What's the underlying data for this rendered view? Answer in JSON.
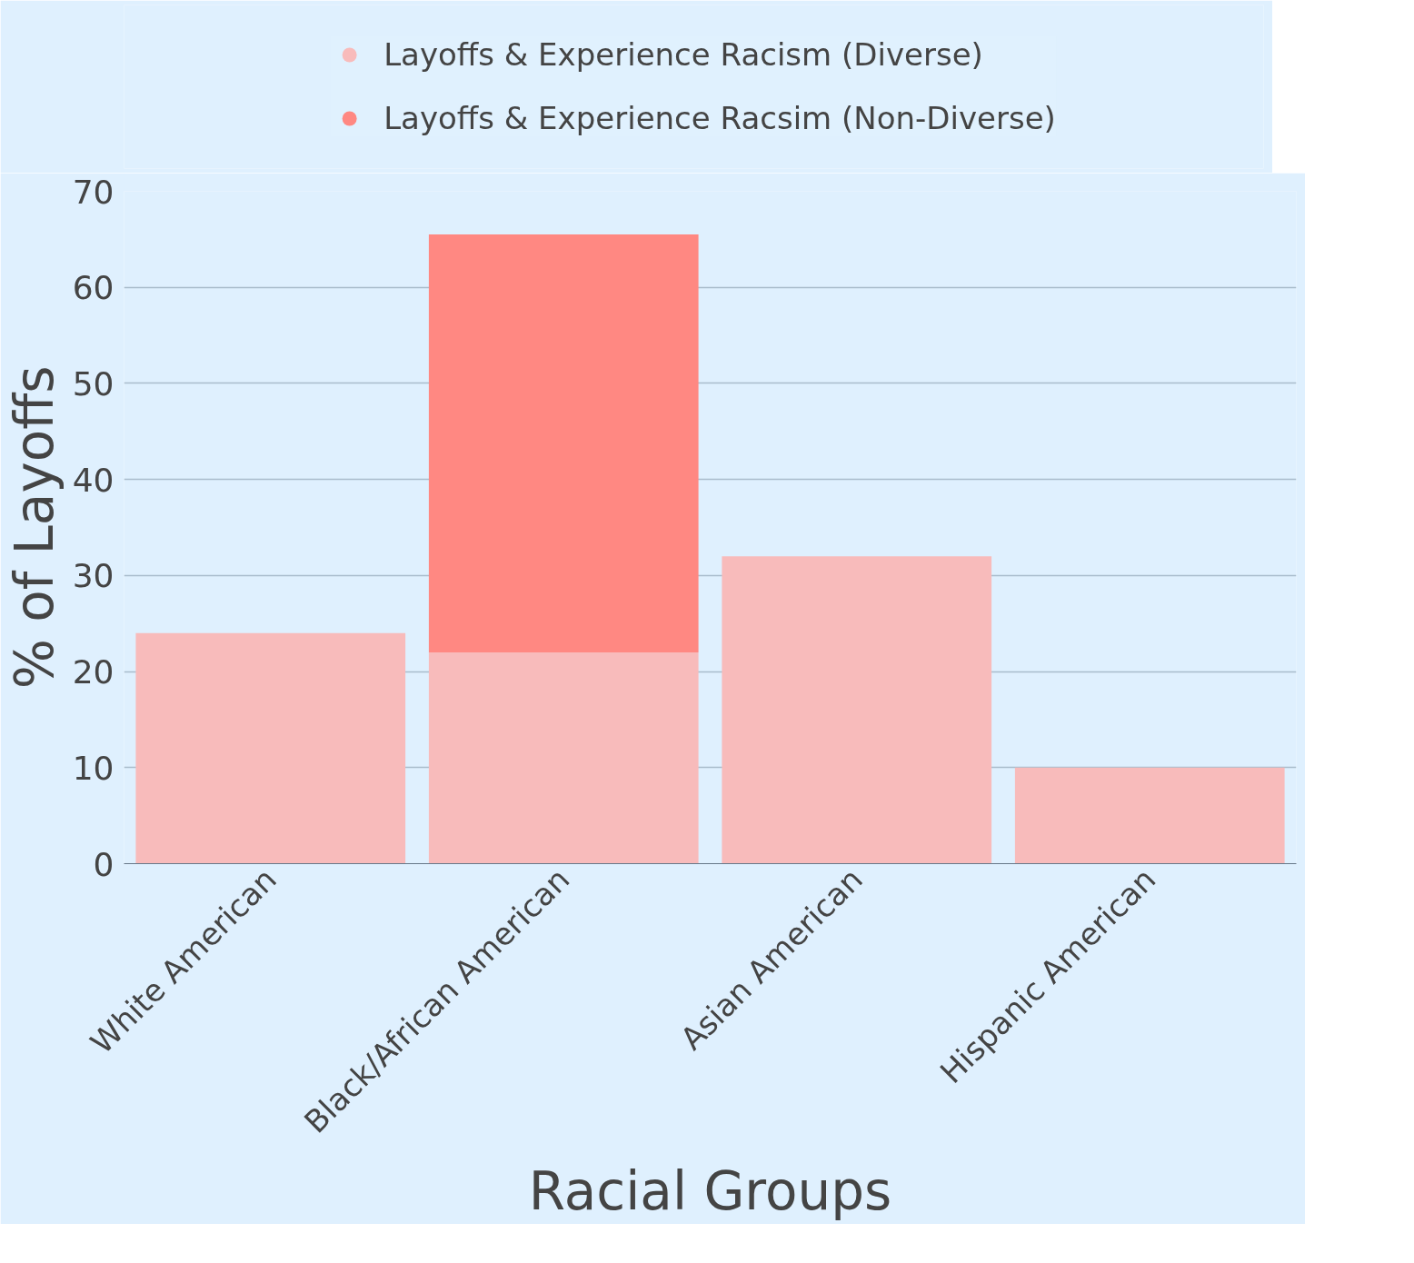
{
  "chart_data": {
    "type": "bar",
    "stacked": true,
    "xlabel": "Racial Groups",
    "ylabel": "% of Layoffs",
    "categories": [
      "White American",
      "Black/African American",
      "Asian American",
      "Hispanic American"
    ],
    "series": [
      {
        "name": "Layoffs & Experience Racism (Diverse)",
        "color": "#f8bbbb",
        "values": [
          24,
          22,
          32,
          10
        ]
      },
      {
        "name": "Layoffs & Experience Racsim (Non-Diverse)",
        "color": "#ff8882",
        "values": [
          null,
          43.5,
          null,
          null
        ]
      }
    ],
    "ylim": [
      0,
      70
    ],
    "yticks": [
      0,
      10,
      20,
      30,
      40,
      50,
      60,
      70
    ],
    "grid": "y",
    "legend": "top"
  }
}
